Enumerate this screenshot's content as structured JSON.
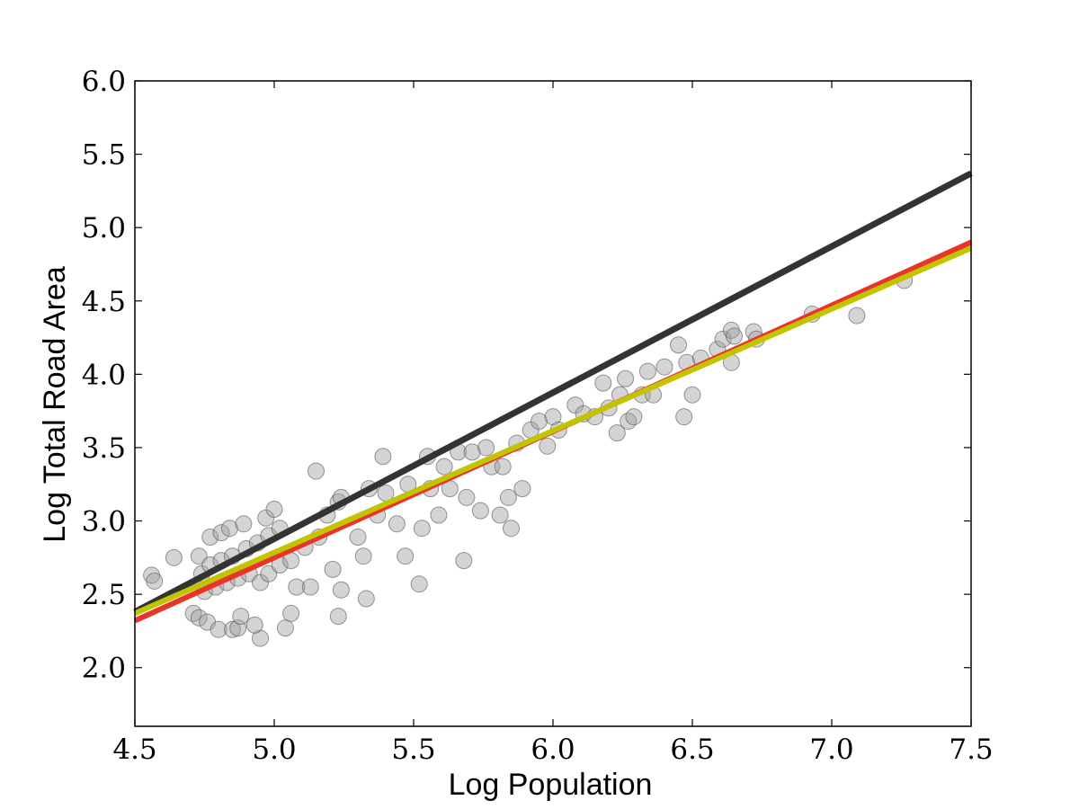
{
  "chart_data": {
    "type": "scatter",
    "xlabel": "Log Population",
    "ylabel": "Log Total Road Area",
    "xlim": [
      4.5,
      7.5
    ],
    "ylim": [
      1.6,
      6.0
    ],
    "xticks": [
      4.5,
      {
        "value": 5,
        "label": "5.0"
      },
      5.5,
      {
        "value": 6,
        "label": "6.0"
      },
      6.5,
      {
        "value": 7,
        "label": "7.0"
      },
      7.5
    ],
    "yticks": [
      {
        "value": 2,
        "label": "2.0"
      },
      2.5,
      {
        "value": 3,
        "label": "3.0"
      },
      3.5,
      {
        "value": 4,
        "label": "4.0"
      },
      4.5,
      {
        "value": 5,
        "label": "5.0"
      },
      5.5,
      {
        "value": 6,
        "label": "6.0"
      }
    ],
    "color": "#a0a0a0",
    "x": [
      4.56,
      4.57,
      4.64,
      4.73,
      4.71,
      4.73,
      4.76,
      4.8,
      4.85,
      4.87,
      4.95,
      4.88,
      4.93,
      5.04,
      5.06,
      4.77,
      4.81,
      4.84,
      4.89,
      4.97,
      5.0,
      4.74,
      4.77,
      4.81,
      4.85,
      4.9,
      4.94,
      4.98,
      5.02,
      4.75,
      4.79,
      4.83,
      4.87,
      4.91,
      4.95,
      4.98,
      5.02,
      5.06,
      5.08,
      5.13,
      5.11,
      5.16,
      5.15,
      5.19,
      5.23,
      5.24,
      5.21,
      5.24,
      5.23,
      5.3,
      5.32,
      5.33,
      5.34,
      5.37,
      5.39,
      5.4,
      5.44,
      5.47,
      5.48,
      5.52,
      5.53,
      5.55,
      5.56,
      5.59,
      5.61,
      5.63,
      5.66,
      5.68,
      5.69,
      5.71,
      5.74,
      5.76,
      5.78,
      5.81,
      5.82,
      5.84,
      5.85,
      5.87,
      5.89,
      5.92,
      5.95,
      5.98,
      6.0,
      6.02,
      6.08,
      6.11,
      6.15,
      6.18,
      6.2,
      6.23,
      6.24,
      6.26,
      6.27,
      6.29,
      6.32,
      6.34,
      6.36,
      6.4,
      6.45,
      6.47,
      6.48,
      6.5,
      6.53,
      6.59,
      6.61,
      6.64,
      6.64,
      6.65,
      6.72,
      6.73,
      6.93,
      7.09,
      7.26
    ],
    "values": [
      2.63,
      2.59,
      2.75,
      2.76,
      2.37,
      2.34,
      2.31,
      2.26,
      2.26,
      2.27,
      2.2,
      2.35,
      2.29,
      2.27,
      2.37,
      2.89,
      2.92,
      2.95,
      2.98,
      3.02,
      3.08,
      2.64,
      2.7,
      2.73,
      2.76,
      2.81,
      2.85,
      2.9,
      2.95,
      2.52,
      2.55,
      2.58,
      2.61,
      2.64,
      2.58,
      2.64,
      2.7,
      2.73,
      2.55,
      2.55,
      2.82,
      2.89,
      3.34,
      3.04,
      3.13,
      3.16,
      2.67,
      2.53,
      2.35,
      2.89,
      2.76,
      2.47,
      3.22,
      3.04,
      3.44,
      3.19,
      2.98,
      2.76,
      3.25,
      2.57,
      2.95,
      3.44,
      3.22,
      3.04,
      3.37,
      3.22,
      3.47,
      2.73,
      3.16,
      3.47,
      3.07,
      3.5,
      3.37,
      3.04,
      3.37,
      3.16,
      2.95,
      3.53,
      3.22,
      3.62,
      3.68,
      3.51,
      3.71,
      3.62,
      3.79,
      3.73,
      3.71,
      3.94,
      3.77,
      3.6,
      3.86,
      3.97,
      3.68,
      3.71,
      3.86,
      4.02,
      3.86,
      4.05,
      4.2,
      3.71,
      4.08,
      3.86,
      4.11,
      4.17,
      4.24,
      4.3,
      4.08,
      4.26,
      4.29,
      4.24,
      4.41,
      4.4,
      4.64
    ],
    "series": [
      {
        "type": "line",
        "color": "#333333",
        "x": [
          4.5,
          7.5
        ],
        "values": [
          2.38,
          5.37
        ]
      },
      {
        "type": "line",
        "color": "#e8352a",
        "x": [
          4.5,
          7.5
        ],
        "values": [
          2.32,
          4.9
        ]
      },
      {
        "type": "line",
        "color": "#c2c400",
        "x": [
          4.5,
          7.5
        ],
        "values": [
          2.37,
          4.86
        ]
      }
    ]
  }
}
